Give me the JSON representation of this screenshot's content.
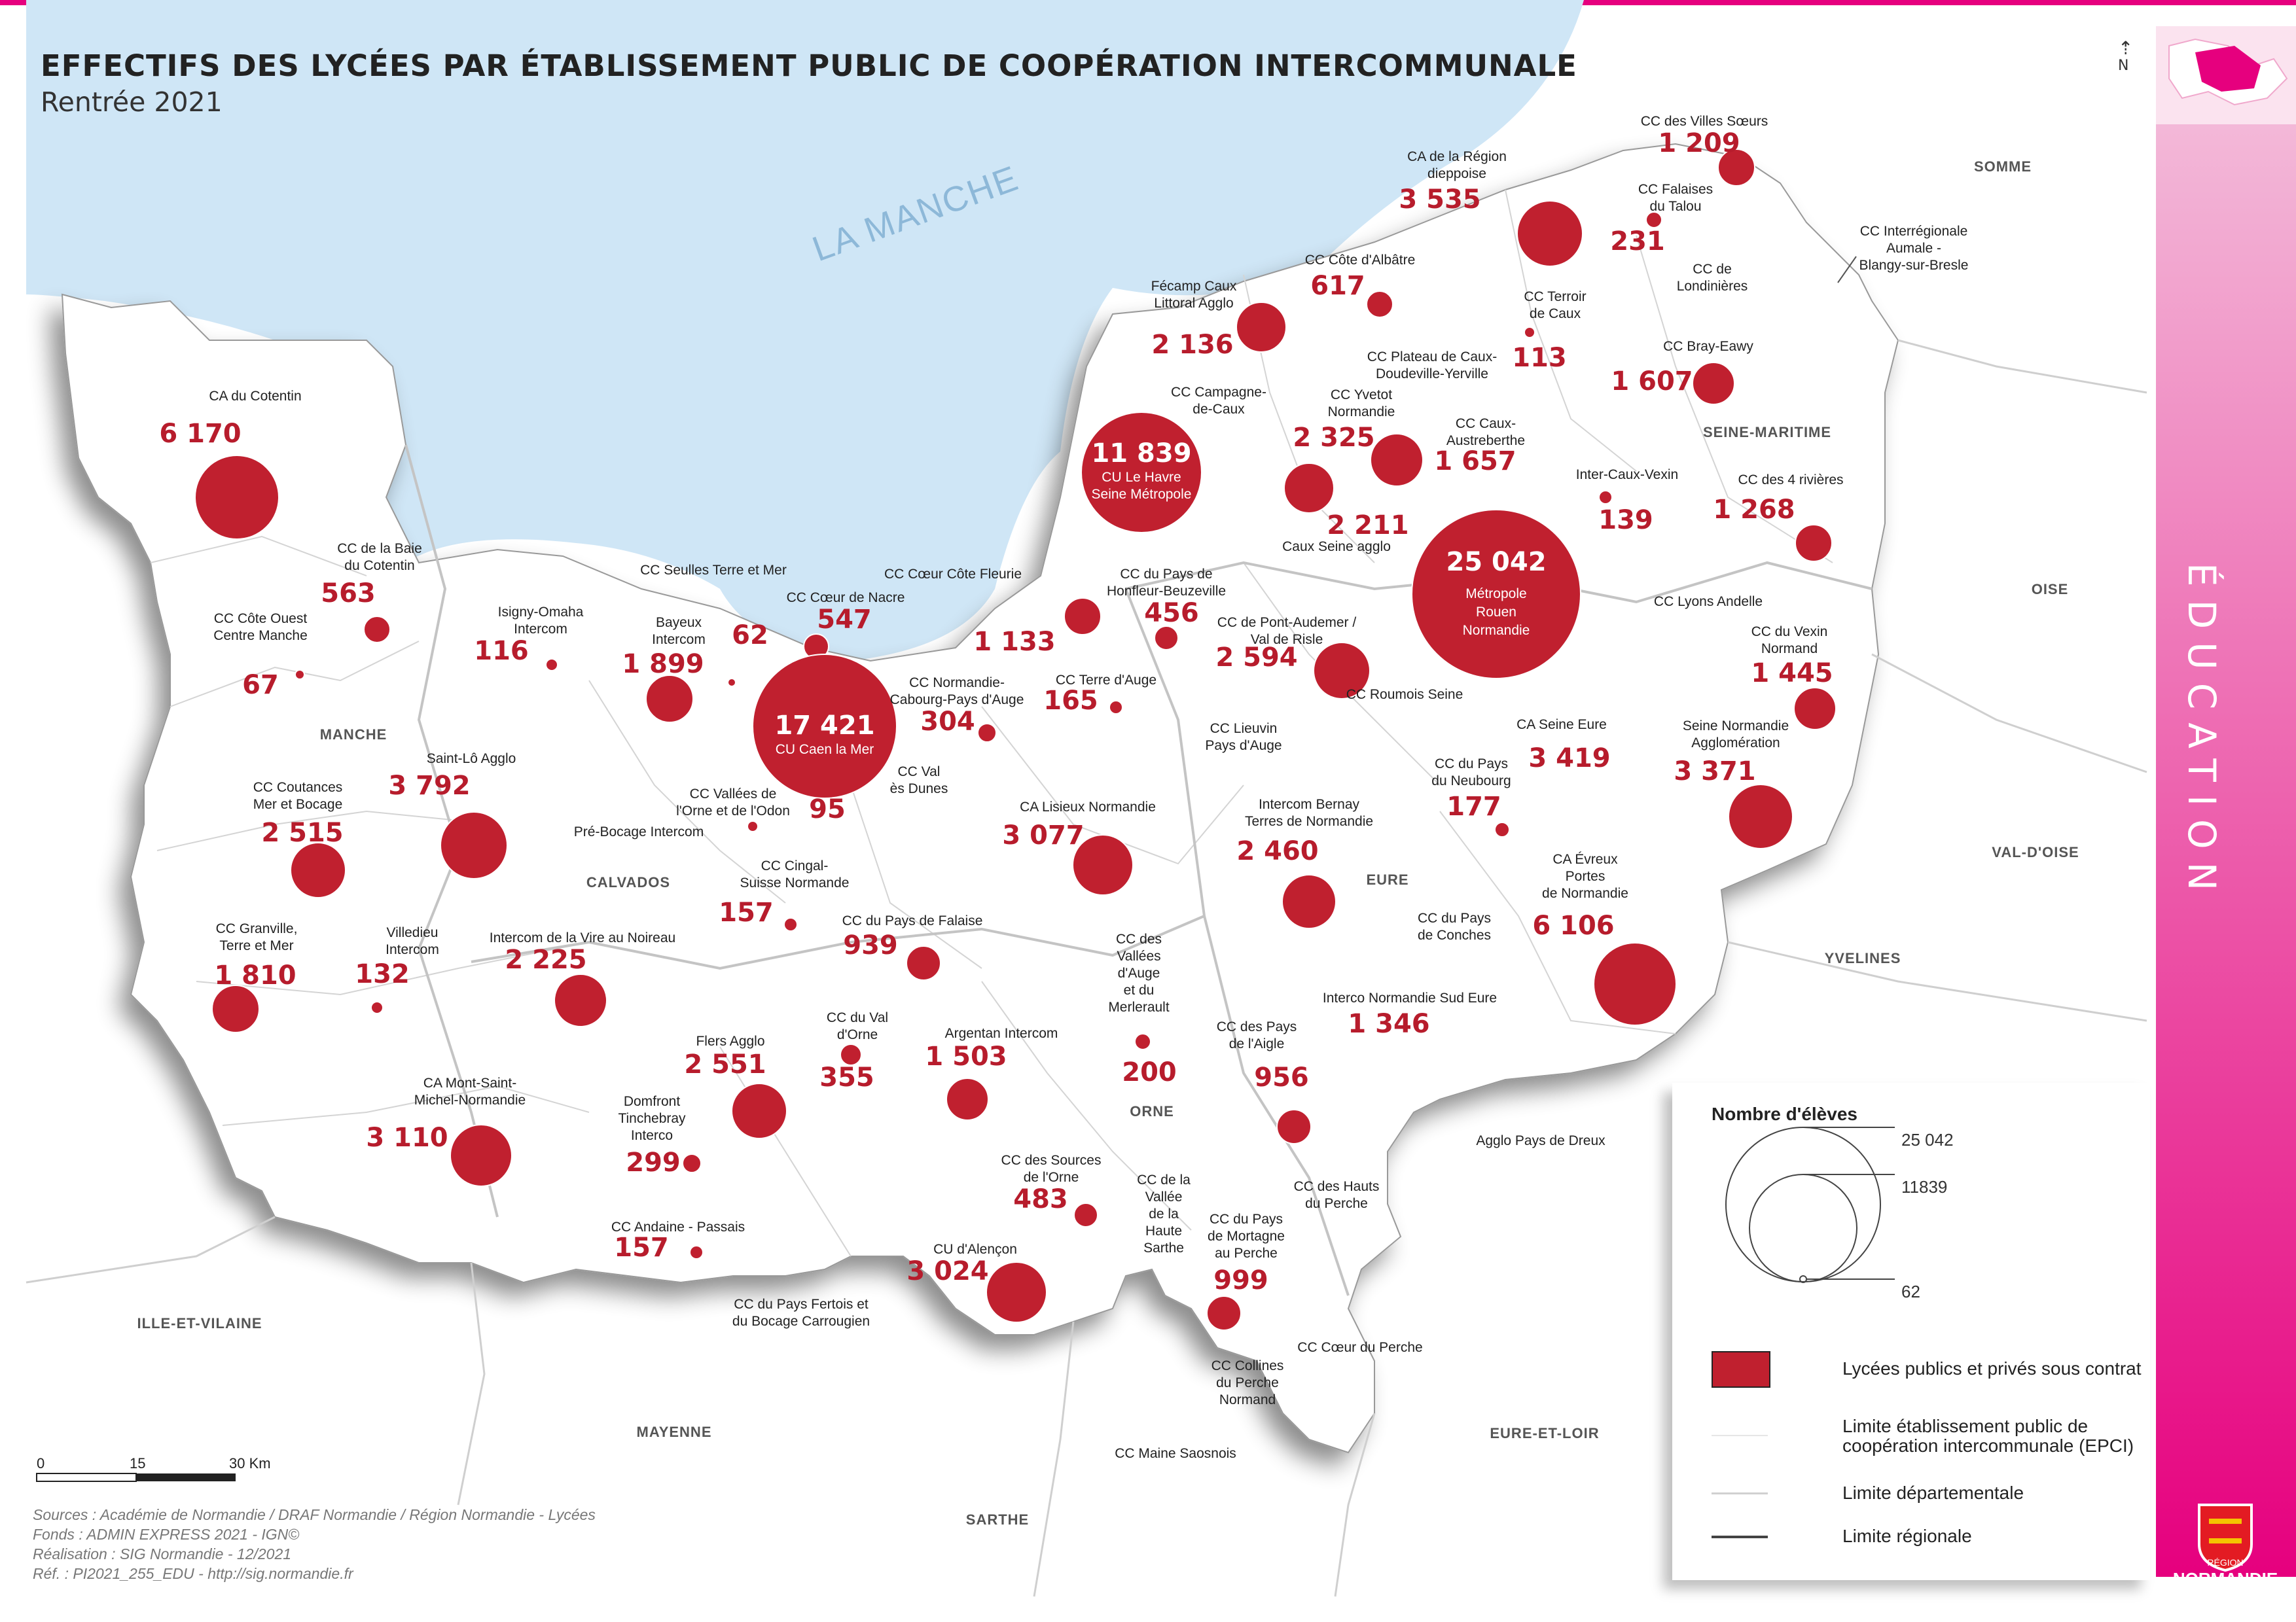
{
  "header": {
    "title": "EFFECTIFS DES LYCÉES PAR ÉTABLISSEMENT PUBLIC DE COOPÉRATION INTERCOMMUNALE",
    "subtitle": "Rentrée 2021"
  },
  "sea_label": "LA MANCHE",
  "north_label": "N",
  "sidebar_label": "ÉDUCATION",
  "departments": [
    "MANCHE",
    "CALVADOS",
    "ORNE",
    "EURE",
    "SEINE-MARITIME"
  ],
  "neighbors": [
    "SOMME",
    "OISE",
    "VAL-D'OISE",
    "YVELINES",
    "EURE-ET-LOIR",
    "SARTHE",
    "MAYENNE",
    "ILLE-ET-VILAINE"
  ],
  "epci": [
    {
      "name": "CA du Cotentin",
      "value": "6 170"
    },
    {
      "name": "CC de la Baie du Cotentin",
      "value": "563"
    },
    {
      "name": "CC Côte Ouest Centre Manche",
      "value": "67"
    },
    {
      "name": "CC Coutances Mer et Bocage",
      "value": "2 515"
    },
    {
      "name": "Saint-Lô Agglo",
      "value": "3 792"
    },
    {
      "name": "CC Granville, Terre et Mer",
      "value": "1 810"
    },
    {
      "name": "Villedieu Intercom",
      "value": "132"
    },
    {
      "name": "CA Mont-Saint-Michel-Normandie",
      "value": "3 110"
    },
    {
      "name": "Isigny-Omaha Intercom",
      "value": "116"
    },
    {
      "name": "Bayeux Intercom",
      "value": "1 899"
    },
    {
      "name": "CC Seulles Terre et Mer",
      "value": "62"
    },
    {
      "name": "CC Cœur de Nacre",
      "value": "547"
    },
    {
      "name": "CU Caen la Mer",
      "value": "17 421"
    },
    {
      "name": "CC Vallées de l'Orne et de l'Odon",
      "value": "95"
    },
    {
      "name": "CC Val ès Dunes",
      "value": ""
    },
    {
      "name": "Pré-Bocage Intercom",
      "value": ""
    },
    {
      "name": "Intercom de la Vire au Noireau",
      "value": "2 225"
    },
    {
      "name": "CC Cingal-Suisse Normande",
      "value": "157"
    },
    {
      "name": "CC du Pays de Falaise",
      "value": "939"
    },
    {
      "name": "CC Normandie-Cabourg-Pays d'Auge",
      "value": "304"
    },
    {
      "name": "CC Cœur Côte Fleurie",
      "value": "1 133"
    },
    {
      "name": "CC du Pays de Honfleur-Beuzeville",
      "value": "456"
    },
    {
      "name": "CC Terre d'Auge",
      "value": "165"
    },
    {
      "name": "CA Lisieux Normandie",
      "value": "3 077"
    },
    {
      "name": "CC Lieuvin Pays d'Auge",
      "value": ""
    },
    {
      "name": "Flers Agglo",
      "value": "2 551"
    },
    {
      "name": "CC du Val d'Orne",
      "value": "355"
    },
    {
      "name": "Argentan Intercom",
      "value": "1 503"
    },
    {
      "name": "Domfront Tinchebray Interco",
      "value": "299"
    },
    {
      "name": "CC Andaine - Passais",
      "value": "157"
    },
    {
      "name": "CC du Pays Fertois et du Bocage Carrougien",
      "value": ""
    },
    {
      "name": "CU d'Alençon",
      "value": "3 024"
    },
    {
      "name": "CC des Sources de l'Orne",
      "value": "483"
    },
    {
      "name": "CC de la Vallée de la Haute Sarthe",
      "value": ""
    },
    {
      "name": "CC des Vallées d'Auge et du Merlerault",
      "value": "200"
    },
    {
      "name": "CC des Pays de l'Aigle",
      "value": "956"
    },
    {
      "name": "CC du Pays de Mortagne au Perche",
      "value": "999"
    },
    {
      "name": "CC des Hauts du Perche",
      "value": ""
    },
    {
      "name": "CC Cœur du Perche",
      "value": ""
    },
    {
      "name": "CC Collines du Perche Normand",
      "value": ""
    },
    {
      "name": "CC Maine Saosnois",
      "value": ""
    },
    {
      "name": "Fécamp Caux Littoral Agglo",
      "value": "2 136"
    },
    {
      "name": "CC Campagne-de-Caux",
      "value": ""
    },
    {
      "name": "CU Le Havre Seine Métropole",
      "value": "11 839"
    },
    {
      "name": "CC Côte d'Albâtre",
      "value": "617"
    },
    {
      "name": "CC Yvetot Normandie",
      "value": "2 325"
    },
    {
      "name": "CC Plateau de Caux-Doudeville-Yerville",
      "value": ""
    },
    {
      "name": "CC Caux-Austreberthe",
      "value": "1 657"
    },
    {
      "name": "Caux Seine agglo",
      "value": "2 211"
    },
    {
      "name": "CA de la Région dieppoise",
      "value": "3 535"
    },
    {
      "name": "CC Terroir de Caux",
      "value": "113"
    },
    {
      "name": "CC des Villes Sœurs",
      "value": "1 209"
    },
    {
      "name": "CC Falaises du Talou",
      "value": "231"
    },
    {
      "name": "CC de Londinières",
      "value": ""
    },
    {
      "name": "CC Interrégionale Aumale - Blangy-sur-Bresle",
      "value": ""
    },
    {
      "name": "CC Bray-Eawy",
      "value": "1 607"
    },
    {
      "name": "Inter-Caux-Vexin",
      "value": "139"
    },
    {
      "name": "CC des 4 rivières",
      "value": "1 268"
    },
    {
      "name": "Métropole Rouen Normandie",
      "value": "25 042"
    },
    {
      "name": "CC de Pont-Audemer / Val de Risle",
      "value": "2 594"
    },
    {
      "name": "CC Roumois Seine",
      "value": ""
    },
    {
      "name": "CC Lyons Andelle",
      "value": ""
    },
    {
      "name": "CC du Vexin Normand",
      "value": "1 445"
    },
    {
      "name": "CA Seine Eure",
      "value": "3 419"
    },
    {
      "name": "Seine Normandie Agglomération",
      "value": "3 371"
    },
    {
      "name": "CC du Pays du Neubourg",
      "value": "177"
    },
    {
      "name": "Intercom Bernay Terres de Normandie",
      "value": "2 460"
    },
    {
      "name": "CA Évreux Portes de Normandie",
      "value": "6 106"
    },
    {
      "name": "CC du Pays de Conches",
      "value": ""
    },
    {
      "name": "Interco Normandie Sud Eure",
      "value": "1 346"
    },
    {
      "name": "Agglo Pays de Dreux",
      "value": ""
    }
  ],
  "legend": {
    "title": "Nombre d'élèves",
    "scale_values": [
      "25 042",
      "11839",
      "62"
    ],
    "symbol_label": "Lycées publics et privés sous contrat",
    "epci_limit": "Limite établissement public de coopération intercommunale (EPCI)",
    "dept_limit": "Limite départementale",
    "region_limit": "Limite régionale"
  },
  "scalebar": {
    "ticks": [
      "0",
      "15",
      "30 Km"
    ]
  },
  "credits": [
    "Sources : Académie de Normandie / DRAF Normandie / Région Normandie - Lycées",
    "Fonds : ADMIN EXPRESS 2021 - IGN©",
    "Réalisation : SIG Normandie - 12/2021",
    "Réf. : PI2021_255_EDU - http://sig.normandie.fr"
  ],
  "logo": {
    "small": "RÉGION",
    "name": "NORMANDIE"
  },
  "colors": {
    "accent": "#e6007e",
    "circle": "#c0202f",
    "value_text": "#b71c2c",
    "sea": "#cfe6f6"
  }
}
